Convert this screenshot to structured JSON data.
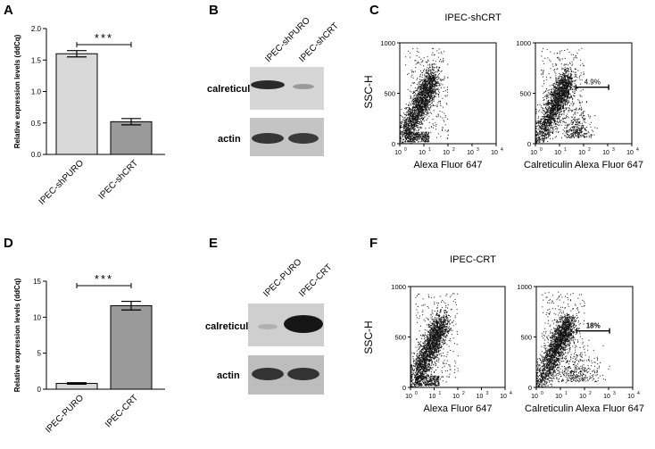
{
  "panels": {
    "A": {
      "letter": "A"
    },
    "B": {
      "letter": "B"
    },
    "C": {
      "letter": "C"
    },
    "D": {
      "letter": "D"
    },
    "E": {
      "letter": "E"
    },
    "F": {
      "letter": "F"
    }
  },
  "chart_data": [
    {
      "panel": "A",
      "type": "bar",
      "categories": [
        "IPEC-shPURO",
        "IPEC-shCRT"
      ],
      "values": [
        1.6,
        0.52
      ],
      "errors": [
        0.05,
        0.05
      ],
      "ylabel": "Relative expression levels (ddCq)",
      "ylim": [
        0,
        2.0
      ],
      "yticks": [
        "0.0",
        "0.5",
        "1.0",
        "1.5",
        "2.0"
      ],
      "significance": "***",
      "colors": [
        "#d9d9d9",
        "#9a9a9a"
      ]
    },
    {
      "panel": "D",
      "type": "bar",
      "categories": [
        "IPEC-PURO",
        "IPEC-CRT"
      ],
      "values": [
        0.8,
        11.6
      ],
      "errors": [
        0.1,
        0.6
      ],
      "ylabel": "Relative expression levels (ddCq)",
      "ylim": [
        0,
        15
      ],
      "yticks": [
        "0",
        "5",
        "10",
        "15"
      ],
      "significance": "***",
      "colors": [
        "#d9d9d9",
        "#9a9a9a"
      ]
    },
    {
      "panel": "C",
      "type": "scatter",
      "title": "IPEC-shCRT",
      "ylabel": "SSC-H",
      "plots": [
        {
          "xlabel": "Alexa Fluor 647",
          "gate": ""
        },
        {
          "xlabel": "Calreticulin Alexa Fluor 647",
          "gate": "4.9%"
        }
      ],
      "yticks": [
        "0",
        "500",
        "1000"
      ],
      "xticks_base": "10",
      "xticks_exp": [
        "0",
        "1",
        "2",
        "3",
        "4"
      ]
    },
    {
      "panel": "F",
      "type": "scatter",
      "title": "IPEC-CRT",
      "ylabel": "SSC-H",
      "plots": [
        {
          "xlabel": "Alexa Fluor 647",
          "gate": ""
        },
        {
          "xlabel": "Calreticulin Alexa Fluor 647",
          "gate": "18%"
        }
      ],
      "yticks": [
        "0",
        "500",
        "1000"
      ],
      "xticks_base": "10",
      "xticks_exp": [
        "0",
        "1",
        "2",
        "3",
        "4"
      ]
    }
  ],
  "blots": {
    "B": {
      "lanes": [
        "IPEC-shPURO",
        "IPEC-shCRT"
      ],
      "rows": [
        "calreticulin",
        "actin"
      ]
    },
    "E": {
      "lanes": [
        "IPEC-PURO",
        "IPEC-CRT"
      ],
      "rows": [
        "calreticulin",
        "actin"
      ]
    }
  }
}
